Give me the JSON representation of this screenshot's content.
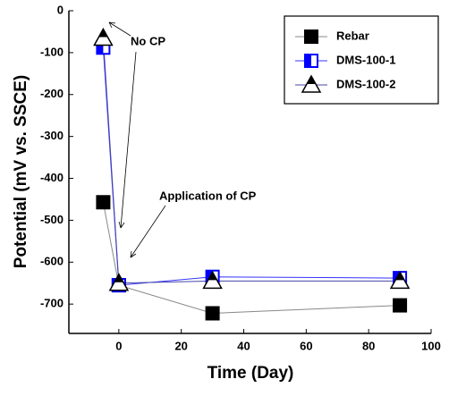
{
  "chart_data": {
    "type": "line",
    "x_label": "Time (Day)",
    "y_label": "Potential (mV vs. SSCE)",
    "xlim": [
      -16,
      100
    ],
    "ylim": [
      -770,
      0
    ],
    "xticks": [
      0,
      20,
      40,
      60,
      80,
      100
    ],
    "yticks": [
      0,
      -100,
      -200,
      -300,
      -400,
      -500,
      -600,
      -700
    ],
    "x": [
      -5,
      0,
      30,
      90
    ],
    "series": [
      {
        "name": "Rebar",
        "color": "#000000",
        "line_color": "#888888",
        "marker": "square",
        "values": [
          -457,
          -655,
          -722,
          -703
        ]
      },
      {
        "name": "DMS-100-1",
        "color": "#0000ff",
        "line_color": "#3333ff",
        "marker": "half-square",
        "values": [
          -88,
          -655,
          -635,
          -638
        ]
      },
      {
        "name": "DMS-100-2",
        "color": "#000000",
        "line_color": "#4444aa",
        "marker": "half-triangle",
        "values": [
          -65,
          -650,
          -645,
          -645
        ]
      }
    ],
    "legend": "upper right",
    "annotations": [
      "No CP",
      "Application of CP"
    ]
  }
}
